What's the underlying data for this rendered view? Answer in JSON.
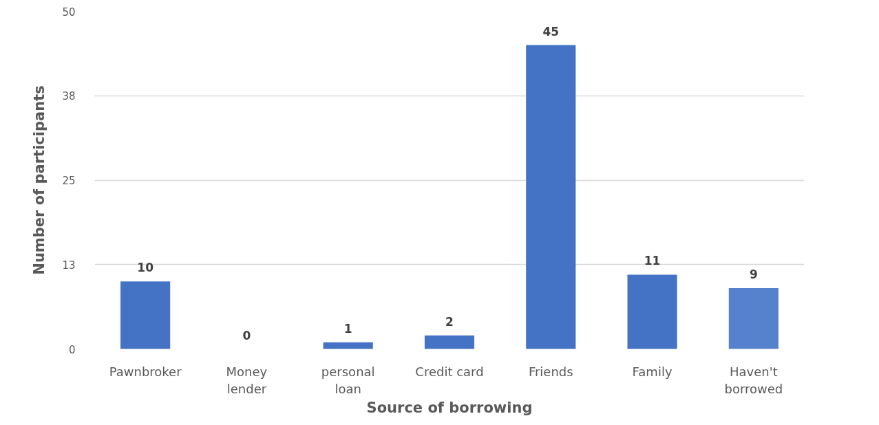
{
  "chart_data": {
    "type": "bar",
    "xlabel": "Source of borrowing",
    "ylabel": "Number of participants",
    "categories": [
      "Pawnbroker",
      "Money lender",
      "personal loan",
      "Credit card",
      "Friends",
      "Family",
      "Haven't borrowed"
    ],
    "values": [
      10,
      0,
      1,
      2,
      45,
      11,
      9
    ],
    "colors": [
      "#4472c4",
      "#4472c4",
      "#4472c4",
      "#4472c4",
      "#4472c4",
      "#4472c4",
      "#5681cc"
    ],
    "ylim": [
      0,
      50
    ],
    "yticks": [
      0,
      {
        "value": 12.5,
        "label": "13"
      },
      25,
      {
        "value": 37.5,
        "label": "38"
      },
      50
    ],
    "grid": "y",
    "data_labels": true
  }
}
